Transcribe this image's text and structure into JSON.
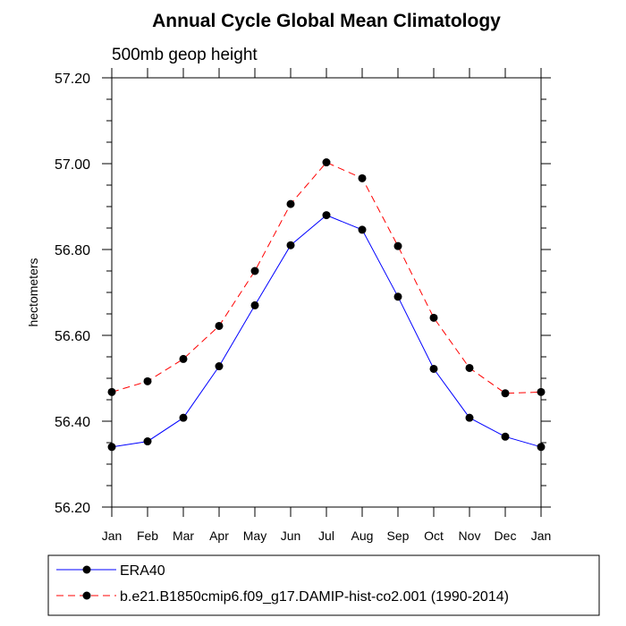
{
  "chart_data": {
    "type": "line",
    "title": "Annual Cycle Global Mean Climatology",
    "subtitle": "500mb geop height",
    "ylabel": "hectometers",
    "xlabel": "",
    "ylim": [
      56.2,
      57.2
    ],
    "yticks": [
      "56.20",
      "56.40",
      "56.60",
      "56.80",
      "57.00",
      "57.20"
    ],
    "categories": [
      "Jan",
      "Feb",
      "Mar",
      "Apr",
      "May",
      "Jun",
      "Jul",
      "Aug",
      "Sep",
      "Oct",
      "Nov",
      "Dec",
      "Jan"
    ],
    "grid": false,
    "legend_position": "bottom",
    "series": [
      {
        "name": "ERA40",
        "color": "#0000ff",
        "style": "solid",
        "values": [
          56.34,
          56.353,
          56.408,
          56.528,
          56.67,
          56.81,
          56.88,
          56.846,
          56.69,
          56.522,
          56.408,
          56.364,
          56.34
        ]
      },
      {
        "name": "b.e21.B1850cmip6.f09_g17.DAMIP-hist-co2.001 (1990-2014)",
        "color": "#ff0000",
        "style": "dashed",
        "values": [
          56.468,
          56.493,
          56.545,
          56.622,
          56.75,
          56.906,
          57.003,
          56.966,
          56.808,
          56.641,
          56.524,
          56.465,
          56.468
        ]
      }
    ]
  }
}
